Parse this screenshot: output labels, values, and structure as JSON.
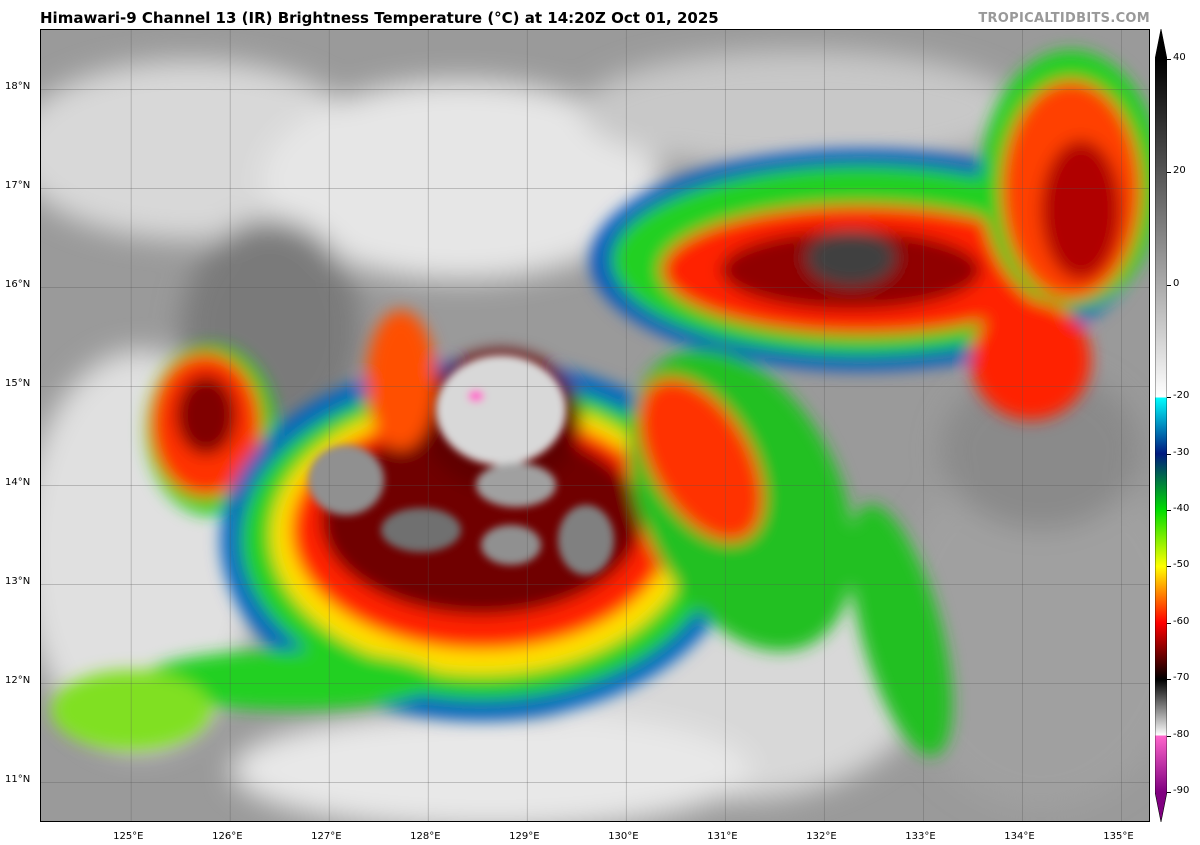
{
  "header": {
    "title": "Himawari-9 Channel 13 (IR) Brightness Temperature (°C) at 14:20Z Oct 01, 2025",
    "brand": "TROPICALTIDBITS.COM"
  },
  "map": {
    "lon_range": [
      124.09,
      135.3
    ],
    "lat_range": [
      10.59,
      18.6
    ],
    "lon_ticks": [
      {
        "value": 125,
        "label": "125°E"
      },
      {
        "value": 126,
        "label": "126°E"
      },
      {
        "value": 127,
        "label": "127°E"
      },
      {
        "value": 128,
        "label": "128°E"
      },
      {
        "value": 129,
        "label": "129°E"
      },
      {
        "value": 130,
        "label": "130°E"
      },
      {
        "value": 131,
        "label": "131°E"
      },
      {
        "value": 132,
        "label": "132°E"
      },
      {
        "value": 133,
        "label": "133°E"
      },
      {
        "value": 134,
        "label": "134°E"
      },
      {
        "value": 135,
        "label": "135°E"
      }
    ],
    "lat_ticks": [
      {
        "value": 18,
        "label": "18°N"
      },
      {
        "value": 17,
        "label": "17°N"
      },
      {
        "value": 16,
        "label": "16°N"
      },
      {
        "value": 15,
        "label": "15°N"
      },
      {
        "value": 14,
        "label": "14°N"
      },
      {
        "value": 13,
        "label": "13°N"
      },
      {
        "value": 12,
        "label": "12°N"
      },
      {
        "value": 11,
        "label": "11°N"
      }
    ],
    "grid": true
  },
  "colorbar": {
    "range": [
      -90,
      40
    ],
    "ticks": [
      "40",
      "20",
      "0",
      "-20",
      "-30",
      "-40",
      "-50",
      "-60",
      "-70",
      "-80",
      "-90"
    ],
    "tick_values": [
      40,
      20,
      0,
      -20,
      -30,
      -40,
      -50,
      -60,
      -70,
      -80,
      -90
    ],
    "stops": [
      {
        "value": 40,
        "color": "#000000"
      },
      {
        "value": -20,
        "color": "#ffffff"
      },
      {
        "value": -20.01,
        "color": "#00ffff"
      },
      {
        "value": -30,
        "color": "#001a80"
      },
      {
        "value": -40,
        "color": "#00dd00"
      },
      {
        "value": -50,
        "color": "#ffff00"
      },
      {
        "value": -60,
        "color": "#ff0000"
      },
      {
        "value": -70,
        "color": "#000000"
      },
      {
        "value": -80,
        "color": "#ffffff"
      },
      {
        "value": -80.01,
        "color": "#ff66cc"
      },
      {
        "value": -90,
        "color": "#800080"
      }
    ]
  }
}
